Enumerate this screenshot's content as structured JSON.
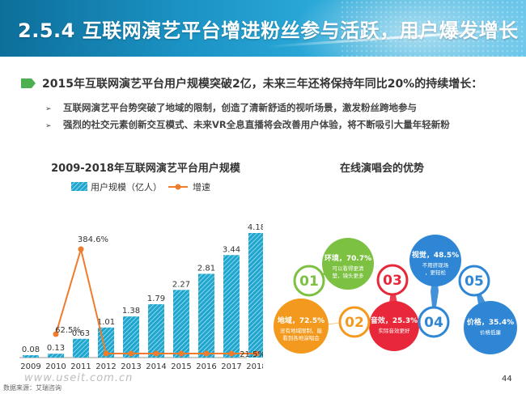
{
  "header": {
    "title": "2.5.4 互联网演艺平台增进粉丝参与活跃，用户爆发增长"
  },
  "lead": {
    "text": "2015年互联网演艺平台用户规模突破2亿，未来三年还将保持年同比20%的持续增长：",
    "bullets": [
      "互联网演艺平台势突破了地域的限制，创造了清新舒适的视听场景，激发粉丝跨地参与",
      "强烈的社交元素创新交互模式、未来VR全息直播将会改善用户体验，将不断吸引大量年轻新粉"
    ],
    "bullet_marker": "➢"
  },
  "chart_data": {
    "type": "bar",
    "title": "2009-2018年互联网演艺平台用户规模",
    "categories": [
      "2009",
      "2010",
      "2011",
      "2012",
      "2013",
      "2014",
      "2015",
      "2016",
      "2017",
      "2018"
    ],
    "series": [
      {
        "name": "用户规模（亿人）",
        "type": "bar",
        "values": [
          0.08,
          0.13,
          0.63,
          1.01,
          1.38,
          1.79,
          2.27,
          2.81,
          3.44,
          4.18
        ]
      },
      {
        "name": "增速",
        "type": "line",
        "point_labels": [
          "",
          "62.5%",
          "384.6%",
          "",
          "",
          "",
          "",
          "",
          "",
          "21.5%"
        ]
      }
    ],
    "colors": {
      "bar": "#1ea6cf",
      "line": "#f07b2b"
    }
  },
  "advantages": {
    "title": "在线演唱会的优势",
    "items": [
      {
        "num": "01",
        "label": "环境，70.7%",
        "desc": "可以看得更清楚，镜头更多",
        "color": "#7cc142"
      },
      {
        "num": "02",
        "label": "地域，72.5%",
        "desc": "没有地域限制，能看到各地演唱会",
        "color": "#f39a1e"
      },
      {
        "num": "03",
        "label": "音效，25.3%",
        "desc": "实际音效更好",
        "color": "#e8283a"
      },
      {
        "num": "04",
        "label": "视觉，48.5%",
        "desc": "不用挤现场，更轻松",
        "color": "#2f86d5"
      },
      {
        "num": "05",
        "label": "价格，35.4%",
        "desc": "价格低廉",
        "color": "#2f86d5"
      }
    ]
  },
  "footer": {
    "source": "数据来源：艾瑞咨询",
    "watermark": "www.useit.com.cn",
    "page": "44"
  }
}
